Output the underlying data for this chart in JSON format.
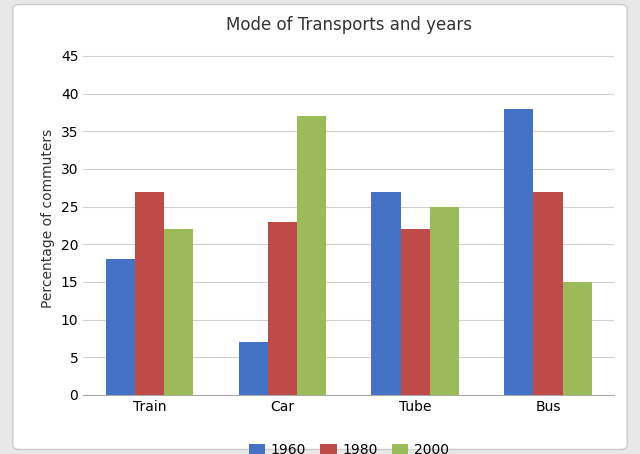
{
  "title": "Mode of Transports and years",
  "ylabel": "Percentage of commuters",
  "categories": [
    "Train",
    "Car",
    "Tube",
    "Bus"
  ],
  "years": [
    "1960",
    "1980",
    "2000"
  ],
  "values": {
    "1960": [
      18,
      7,
      27,
      38
    ],
    "1980": [
      27,
      23,
      22,
      27
    ],
    "2000": [
      22,
      37,
      25,
      15
    ]
  },
  "colors": {
    "1960": "#4472C4",
    "1980": "#BE4B48",
    "2000": "#9BBB59"
  },
  "ylim": [
    0,
    47
  ],
  "yticks": [
    0,
    5,
    10,
    15,
    20,
    25,
    30,
    35,
    40,
    45
  ],
  "bar_width": 0.22,
  "background_color": "#ffffff",
  "plot_bg_color": "#ffffff",
  "outer_bg_color": "#e8e8e8",
  "title_fontsize": 12,
  "axis_label_fontsize": 10,
  "tick_fontsize": 10,
  "legend_fontsize": 10,
  "grid_color": "#d0d0d0"
}
